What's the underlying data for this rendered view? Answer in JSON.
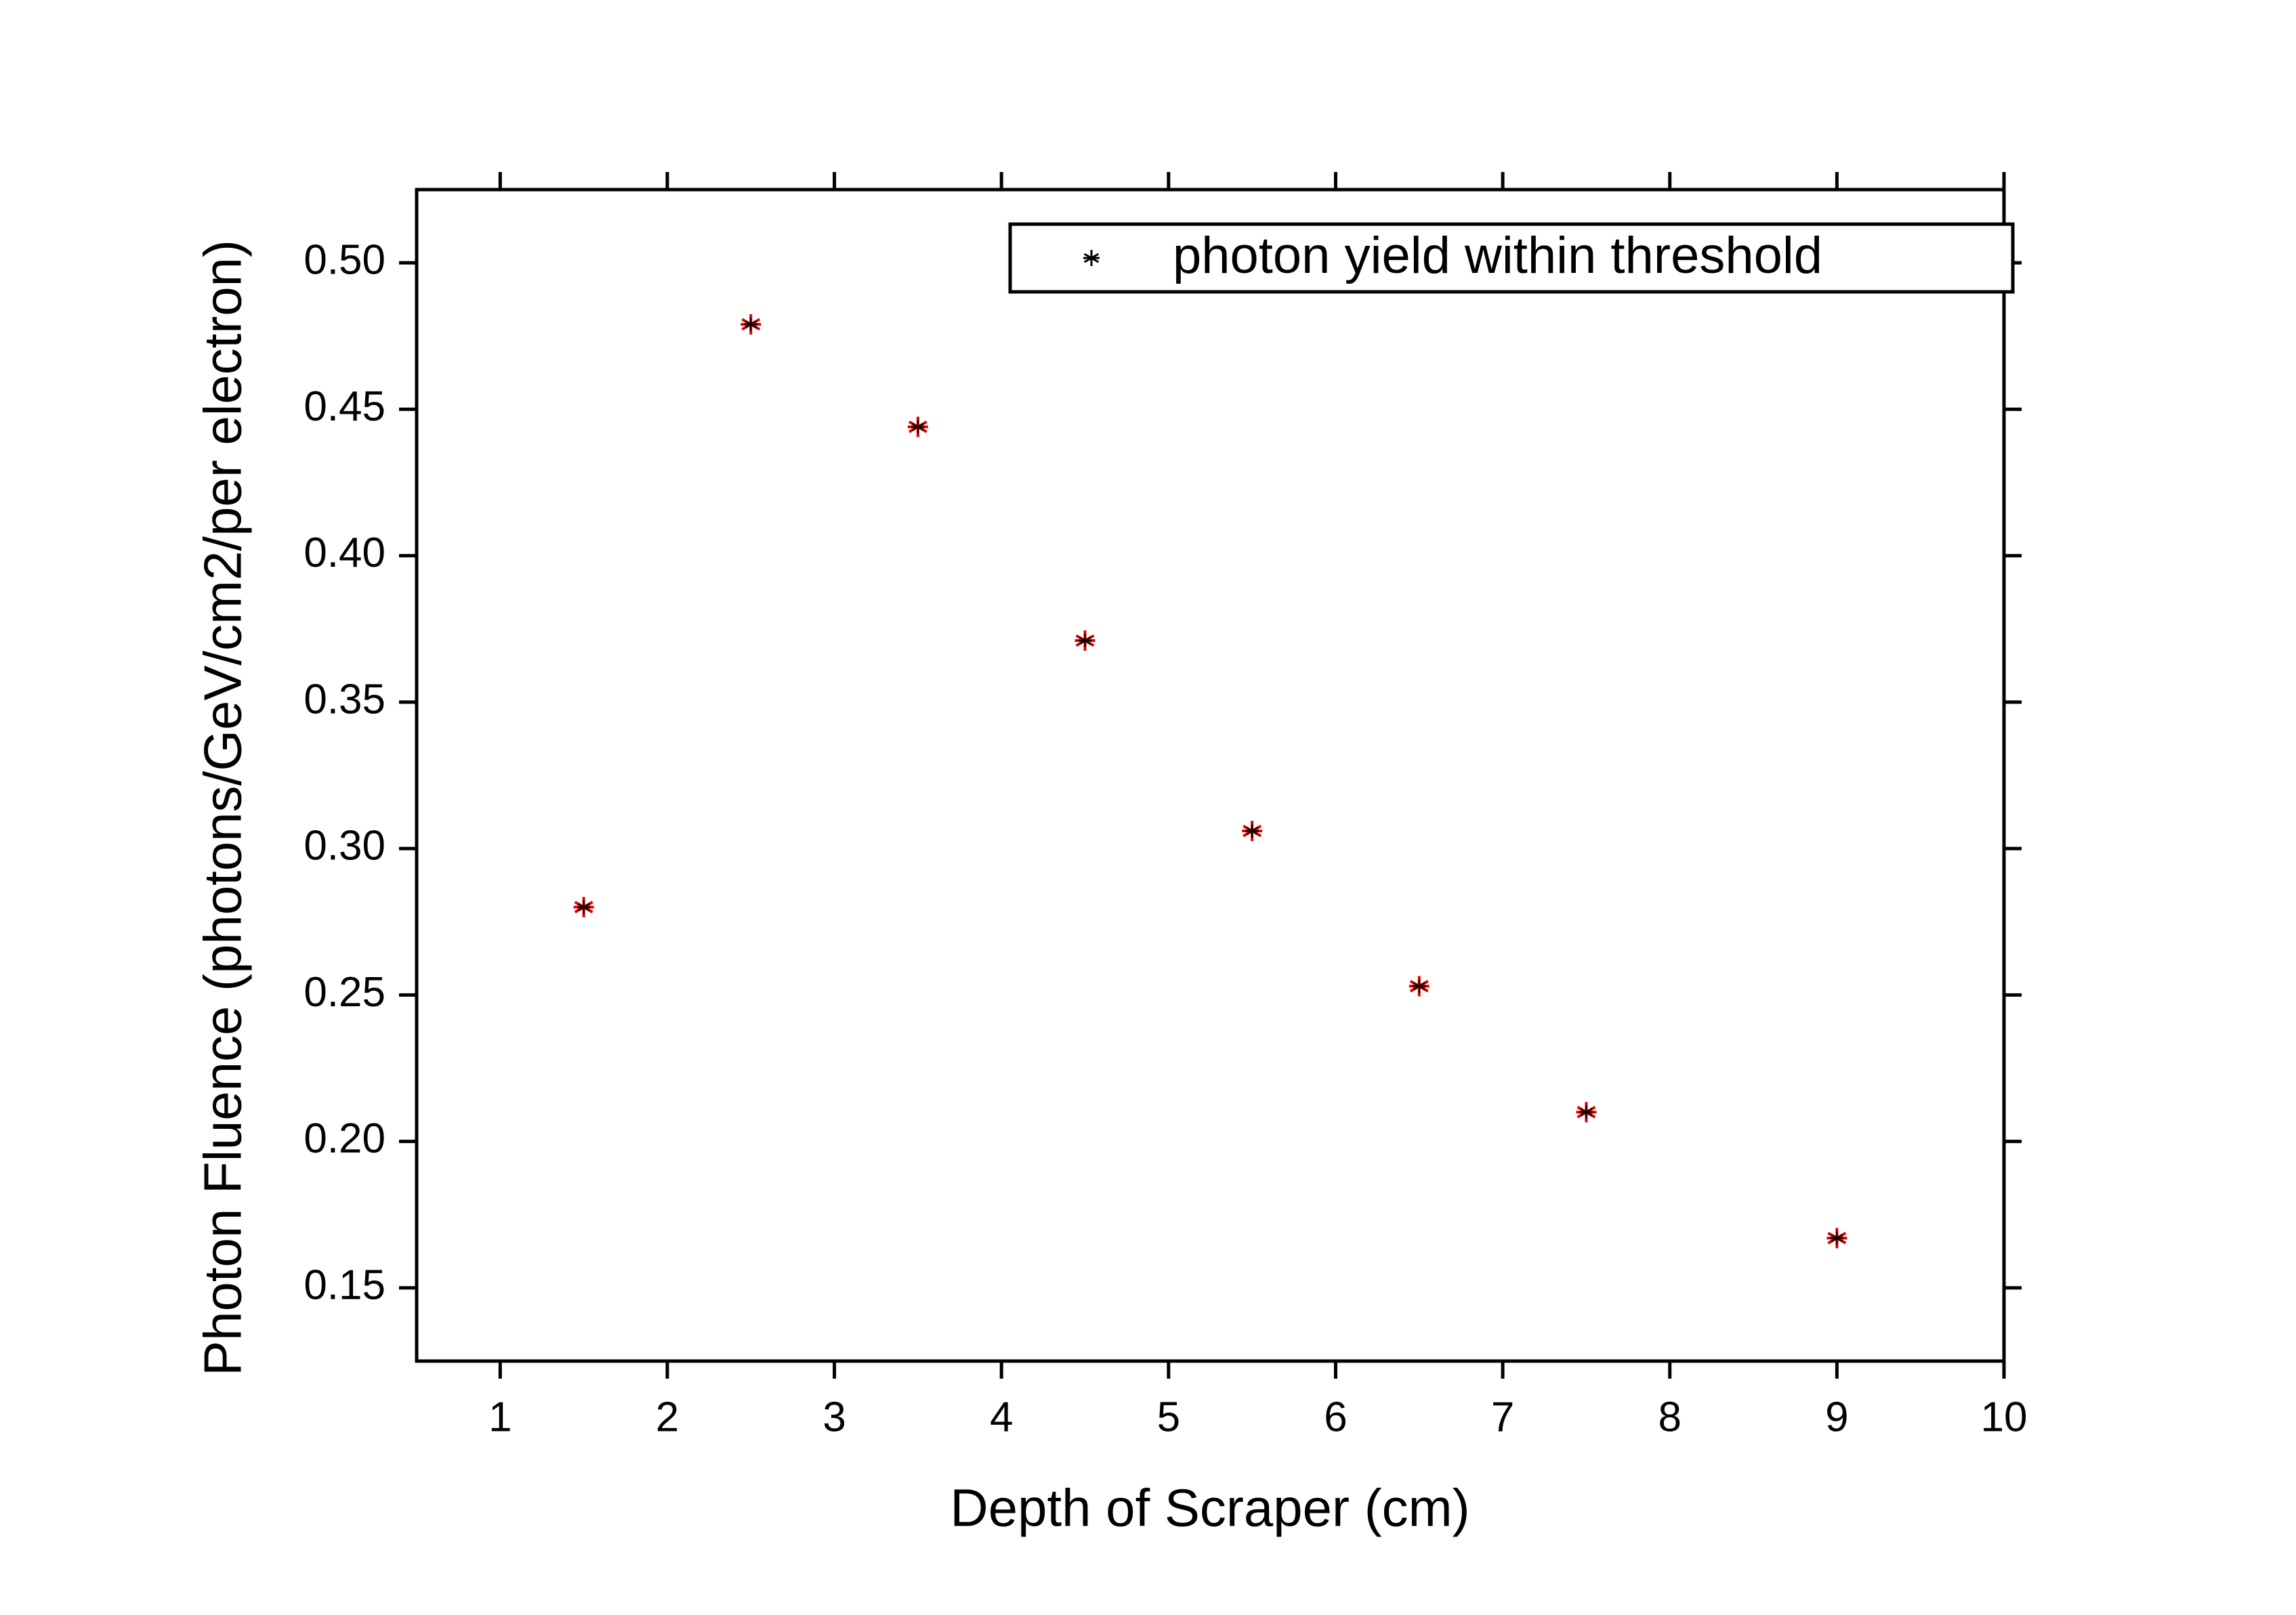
{
  "chart_data": {
    "type": "scatter",
    "xlabel": "Depth of Scraper (cm)",
    "ylabel": "Photon Fluence (photons/GeV/cm2/per electron)",
    "series": [
      {
        "name": "photon yield within threshold",
        "color": "#e00000",
        "x": [
          1.5,
          2.5,
          3.5,
          4.5,
          5.5,
          6.5,
          7.5,
          9
        ],
        "values": [
          0.28,
          0.479,
          0.444,
          0.371,
          0.306,
          0.253,
          0.21,
          0.167
        ]
      }
    ],
    "xlim": [
      0.5,
      10
    ],
    "xticks": [
      1,
      2,
      3,
      4,
      5,
      6,
      7,
      8,
      9,
      10
    ],
    "ylim": [
      0.125,
      0.525
    ],
    "yticks": [
      {
        "value": 0.15,
        "label": "0.15"
      },
      {
        "value": 0.2,
        "label": "0.20"
      },
      {
        "value": 0.25,
        "label": "0.25"
      },
      {
        "value": 0.3,
        "label": "0.30"
      },
      {
        "value": 0.35,
        "label": "0.35"
      },
      {
        "value": 0.4,
        "label": "0.40"
      },
      {
        "value": 0.45,
        "label": "0.45"
      },
      {
        "value": 0.5,
        "label": "0.50"
      }
    ],
    "grid": false,
    "legend": "upper right"
  }
}
